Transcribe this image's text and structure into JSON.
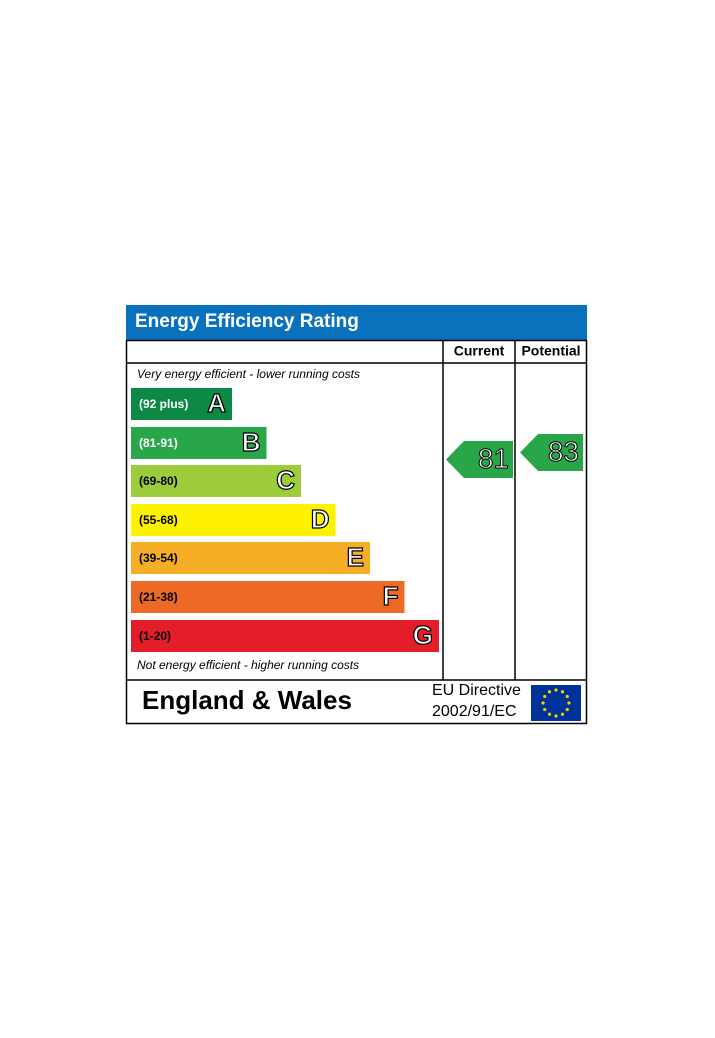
{
  "header": {
    "title": "Energy Efficiency Rating",
    "current_label": "Current",
    "potential_label": "Potential"
  },
  "top_note": "Very energy efficient - lower running costs",
  "bottom_note": "Not energy efficient - higher running costs",
  "bands": [
    {
      "range": "(92 plus)",
      "letter": "A",
      "color": "#0c8a45"
    },
    {
      "range": "(81-91)",
      "letter": "B",
      "color": "#2aa64a"
    },
    {
      "range": "(69-80)",
      "letter": "C",
      "color": "#9ccb3b"
    },
    {
      "range": "(55-68)",
      "letter": "D",
      "color": "#fff200"
    },
    {
      "range": "(39-54)",
      "letter": "E",
      "color": "#f6ae26"
    },
    {
      "range": "(21-38)",
      "letter": "F",
      "color": "#ec6a26"
    },
    {
      "range": "(1-20)",
      "letter": "G",
      "color": "#e31d2a"
    }
  ],
  "current": {
    "value": 81,
    "color": "#2aa64a"
  },
  "potential": {
    "value": 83,
    "color": "#2aa64a"
  },
  "footer": {
    "region": "England & Wales",
    "directive_label": "EU Directive",
    "directive_code": "2002/91/EC"
  }
}
